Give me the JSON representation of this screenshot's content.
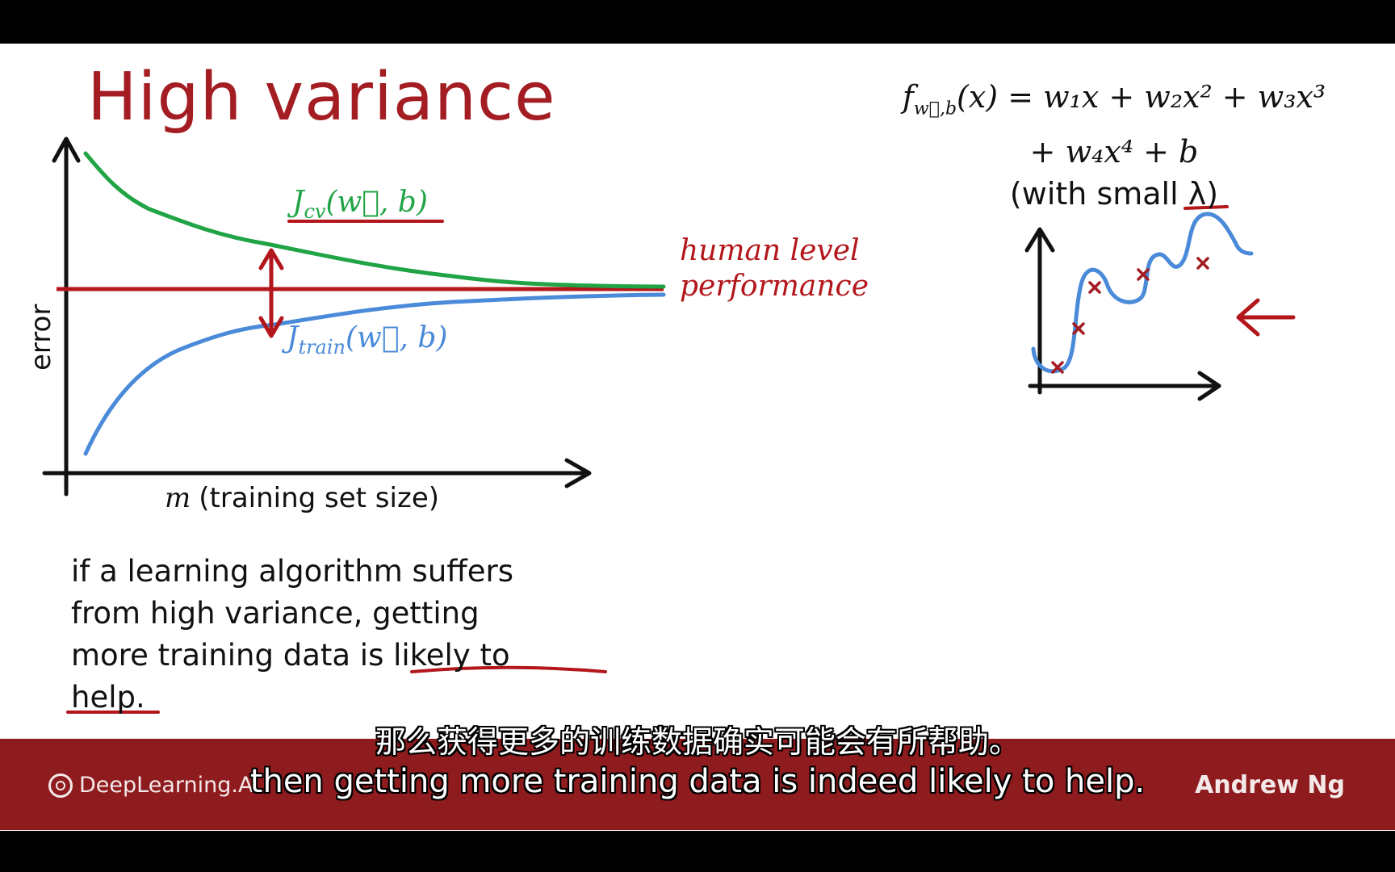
{
  "slide": {
    "title": "High variance",
    "graph": {
      "y_axis_label": "error",
      "x_axis_label_var": "m",
      "x_axis_label_text": "(training set size)",
      "jcv_label": "J",
      "jcv_sub": "cv",
      "jcv_args": "(w⃗, b)",
      "jtrain_label": "J",
      "jtrain_sub": "train",
      "jtrain_args": "(w⃗, b)",
      "human_level_line1": "human level",
      "human_level_line2": "performance"
    },
    "body_text": "if a learning algorithm suffers\nfrom high variance, getting\nmore training data is likely to\nhelp.",
    "formula": {
      "line1": "f",
      "line1_sub": "w⃗,b",
      "line1_rest": "(x) = w₁x + w₂x² + w₃x³",
      "line2": "+ w₄x⁴ + b",
      "line3": "(with small λ)"
    }
  },
  "footer": {
    "logo_text": "DeepLearning.AI",
    "author": "Andrew Ng"
  },
  "subtitles": {
    "chinese": "那么获得更多的训练数据确实可能会有所帮助。",
    "english": "then getting more training data is indeed likely to help."
  },
  "colors": {
    "title": "#a31d23",
    "jcv_curve": "#21a446",
    "jtrain_curve": "#4a8ad9",
    "human_level_line": "#b3161b",
    "footer_bg": "#8e1b1e"
  }
}
